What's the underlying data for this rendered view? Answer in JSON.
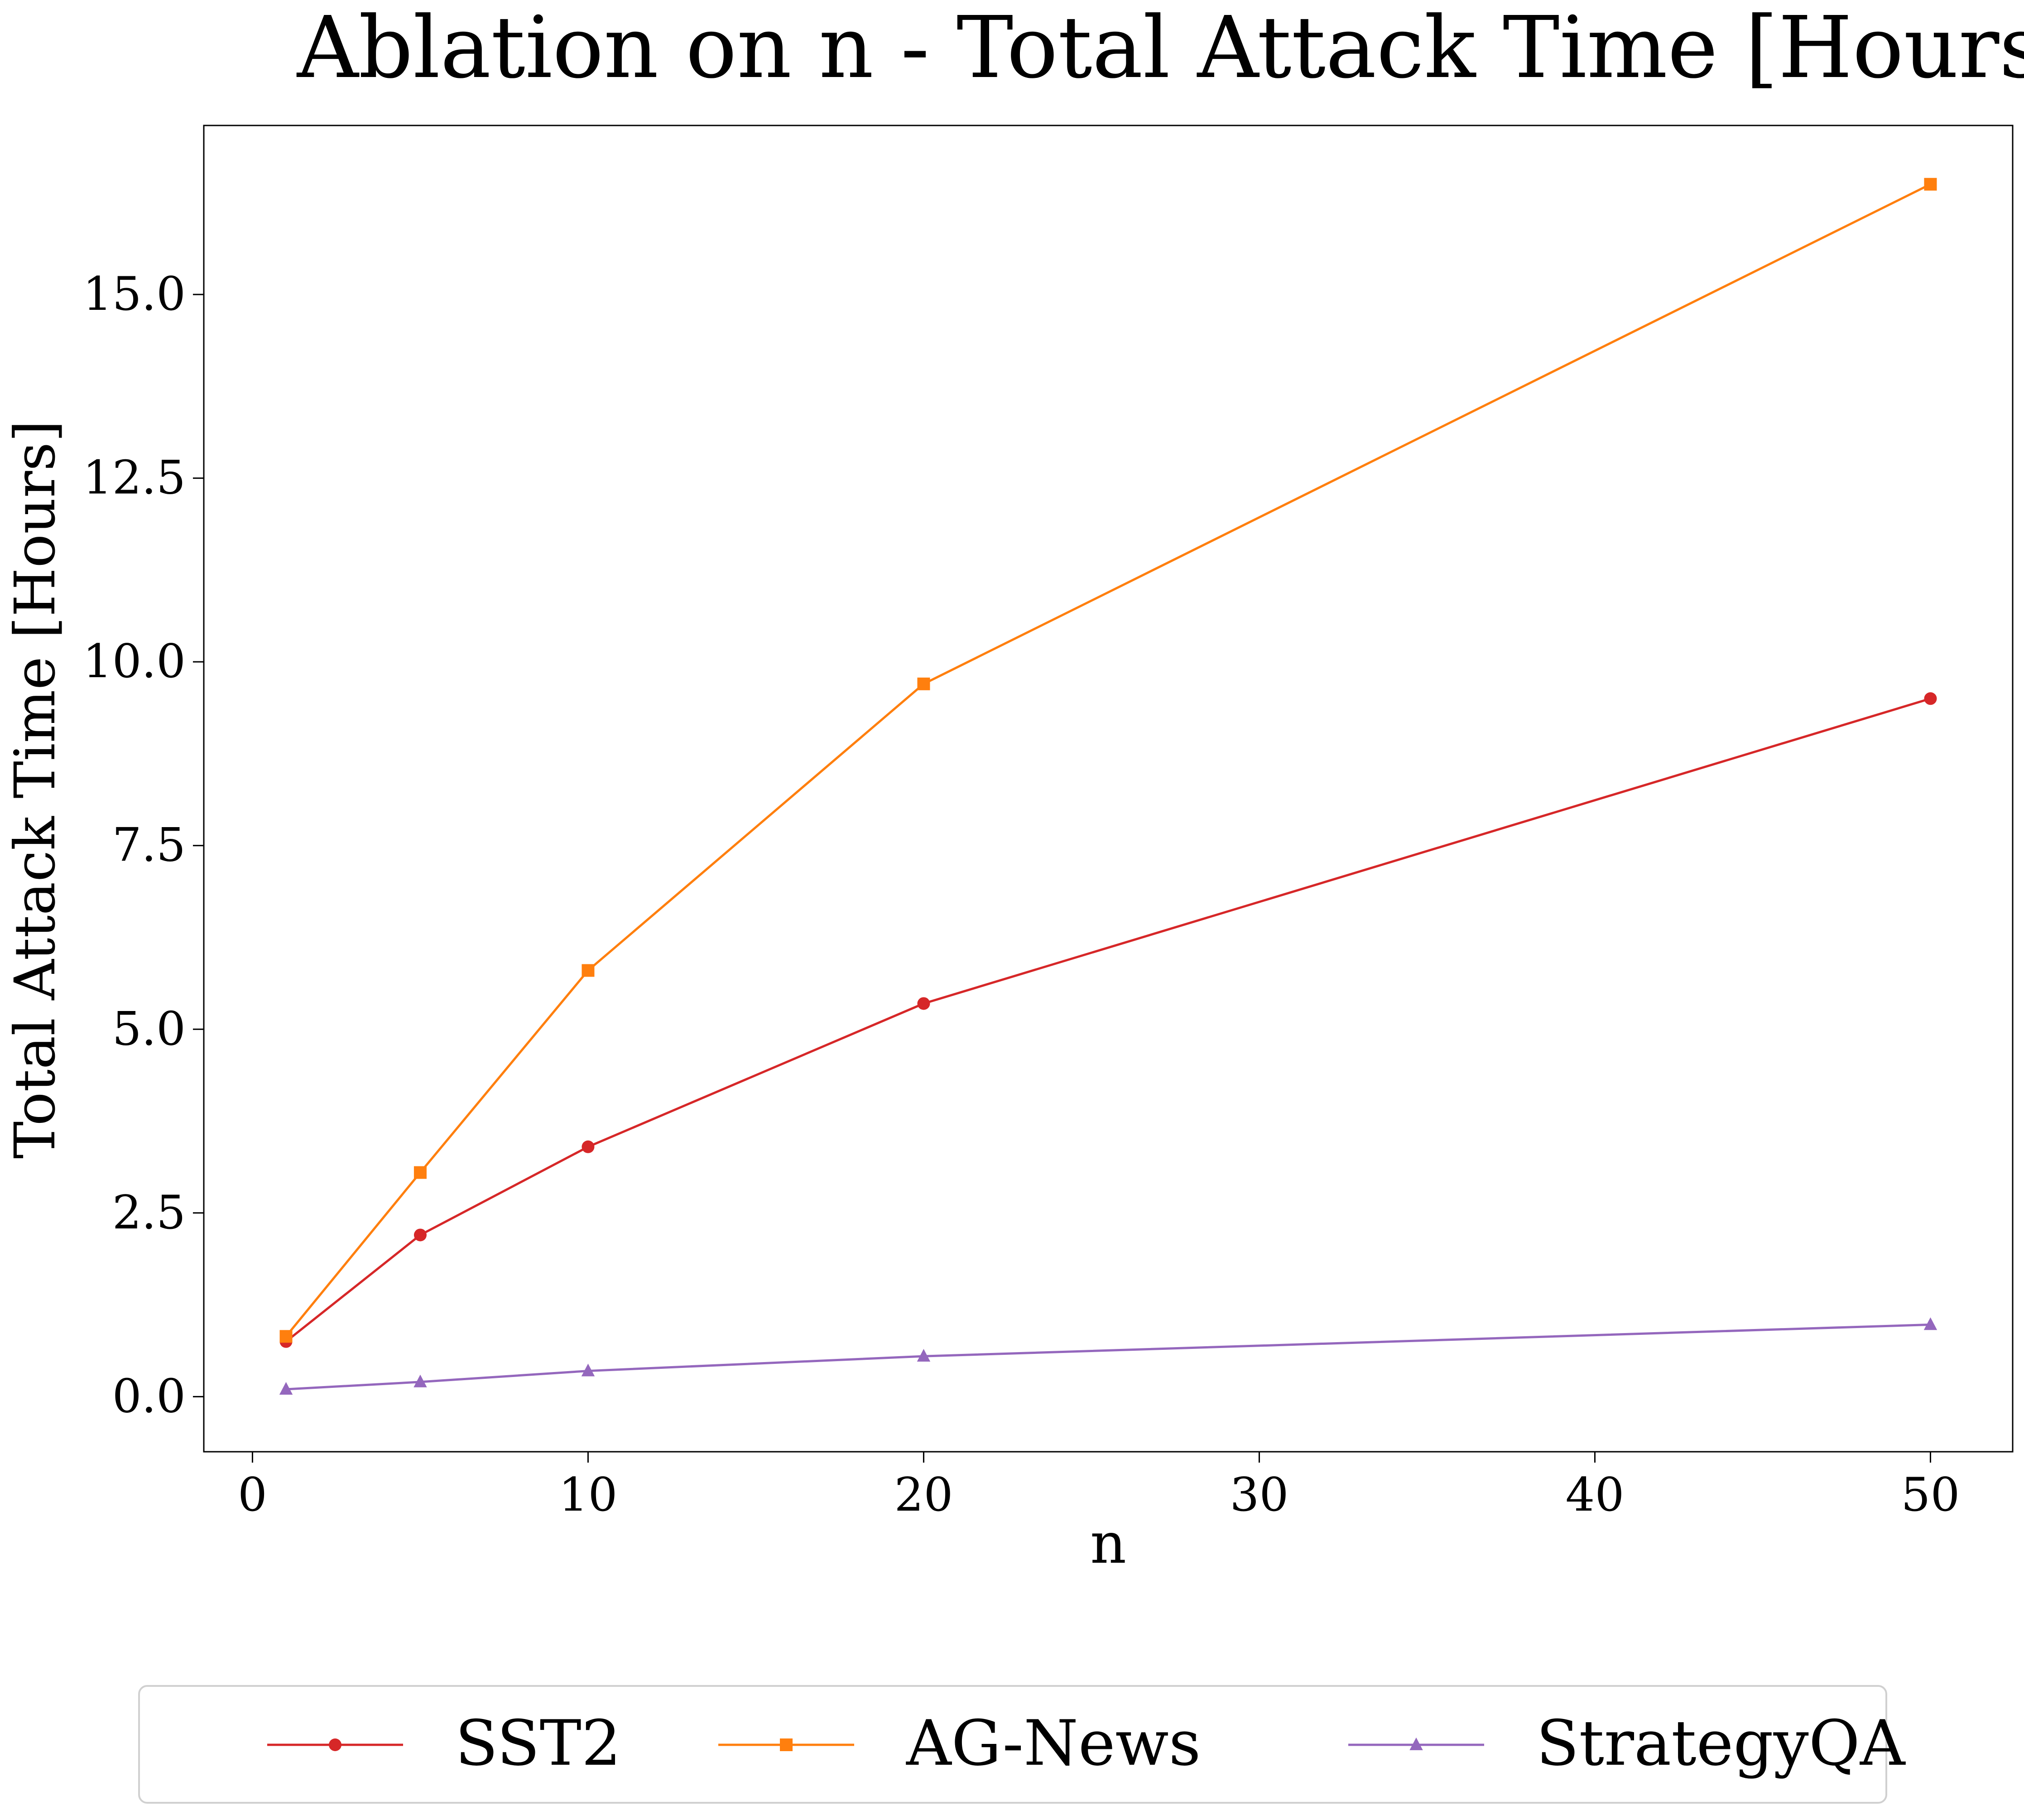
{
  "chart_data": {
    "type": "line",
    "title": "Ablation on n - Total Attack Time [Hours]",
    "xlabel": "n",
    "ylabel": "Total Attack Time [Hours]",
    "xlim": [
      -1.45,
      52.45
    ],
    "ylim": [
      -0.75,
      17.3
    ],
    "x_ticks": [
      0,
      10,
      20,
      30,
      40,
      50
    ],
    "y_ticks": [
      0.0,
      2.5,
      5.0,
      7.5,
      10.0,
      12.5,
      15.0
    ],
    "y_tick_labels": [
      "0.0",
      "2.5",
      "5.0",
      "7.5",
      "10.0",
      "12.5",
      "15.0"
    ],
    "grid": false,
    "legend_position": "bottom-center",
    "x": [
      1,
      5,
      10,
      20,
      50
    ],
    "series": [
      {
        "name": "SST2",
        "color": "#d62728",
        "marker": "circle",
        "values": [
          0.75,
          2.2,
          3.4,
          5.35,
          9.5
        ]
      },
      {
        "name": "AG-News",
        "color": "#ff7f0e",
        "marker": "square",
        "values": [
          0.82,
          3.05,
          5.8,
          9.7,
          16.5
        ]
      },
      {
        "name": "StrategyQA",
        "color": "#9467bd",
        "marker": "triangle",
        "values": [
          0.1,
          0.2,
          0.35,
          0.55,
          0.98
        ]
      }
    ]
  }
}
